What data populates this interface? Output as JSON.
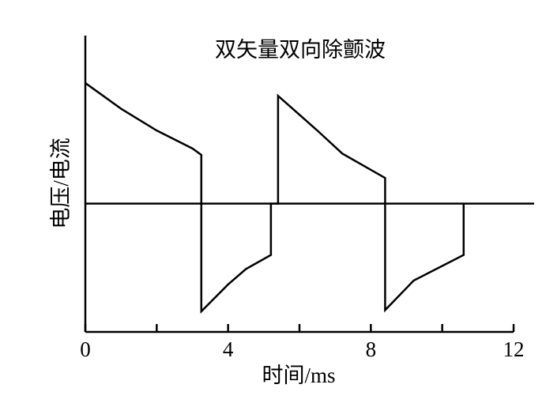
{
  "chart_data": {
    "type": "line",
    "title": "双矢量双向除颤波",
    "xlabel": "时间/ms",
    "ylabel": "电压/电流",
    "xlim": [
      0,
      12
    ],
    "xticks": [
      0,
      4,
      8,
      12
    ],
    "xminorticks": [
      2,
      6,
      10
    ],
    "ylim": [
      -1,
      1.31
    ],
    "series": [
      {
        "color": "#000000",
        "x": [
          0,
          1,
          2,
          3,
          3.25,
          3.25,
          3.25,
          4,
          4.5,
          5.2,
          5.2,
          5.4,
          5.4,
          6.5,
          7.2,
          8.4,
          8.4,
          9.2,
          10.6,
          10.6
        ],
        "values": [
          0.94,
          0.74,
          0.57,
          0.43,
          0.38,
          0,
          -0.84,
          -0.63,
          -0.51,
          -0.4,
          0,
          0,
          0.84,
          0.57,
          0.39,
          0.2,
          -0.83,
          -0.6,
          -0.4,
          0
        ]
      }
    ]
  }
}
